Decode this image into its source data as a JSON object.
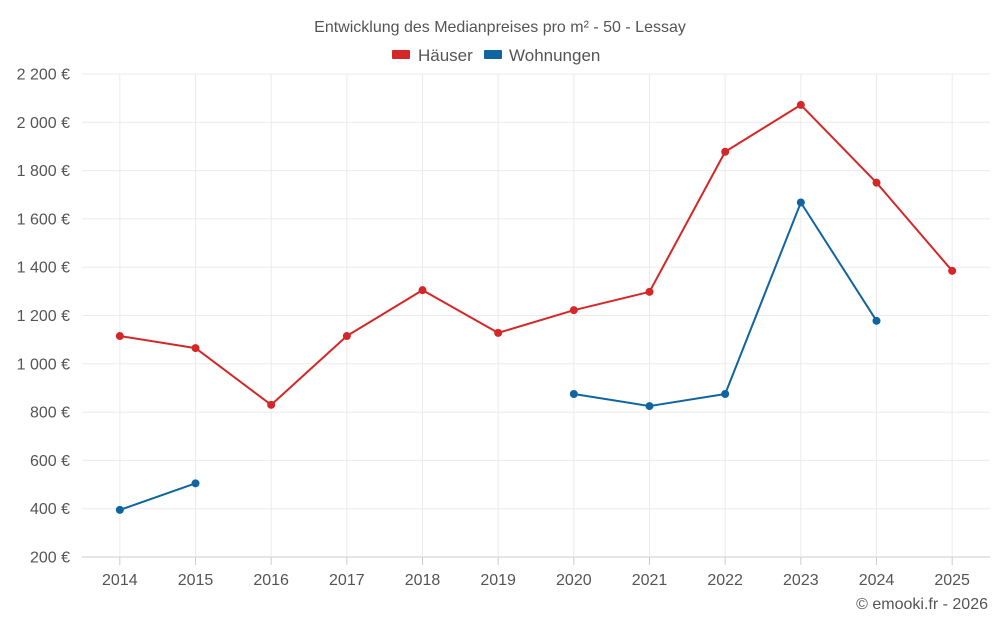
{
  "chart_data": {
    "type": "line",
    "title": "Entwicklung des Medianpreises pro m² - 50 - Lessay",
    "categories": [
      "2014",
      "2015",
      "2016",
      "2017",
      "2018",
      "2019",
      "2020",
      "2021",
      "2022",
      "2023",
      "2024",
      "2025"
    ],
    "series": [
      {
        "name": "Häuser",
        "color": "#d62728",
        "values": [
          1115,
          1065,
          830,
          1115,
          1305,
          1128,
          1222,
          1298,
          1878,
          2072,
          1750,
          1385
        ]
      },
      {
        "name": "Wohnungen",
        "color": "#1064a0",
        "values": [
          395,
          505,
          null,
          null,
          null,
          null,
          875,
          825,
          875,
          1668,
          1178,
          null
        ]
      }
    ],
    "ylim": [
      200,
      2200
    ],
    "yticks": [
      200,
      400,
      600,
      800,
      1000,
      1200,
      1400,
      1600,
      1800,
      2000,
      2200
    ],
    "ytick_labels": [
      "200 €",
      "400 €",
      "600 €",
      "800 €",
      "1 000 €",
      "1 200 €",
      "1 400 €",
      "1 600 €",
      "1 800 €",
      "2 000 €",
      "2 200 €"
    ],
    "xlabel": "",
    "ylabel": "",
    "grid": true,
    "legend_position": "top-center",
    "credit": "© emooki.fr - 2026"
  }
}
